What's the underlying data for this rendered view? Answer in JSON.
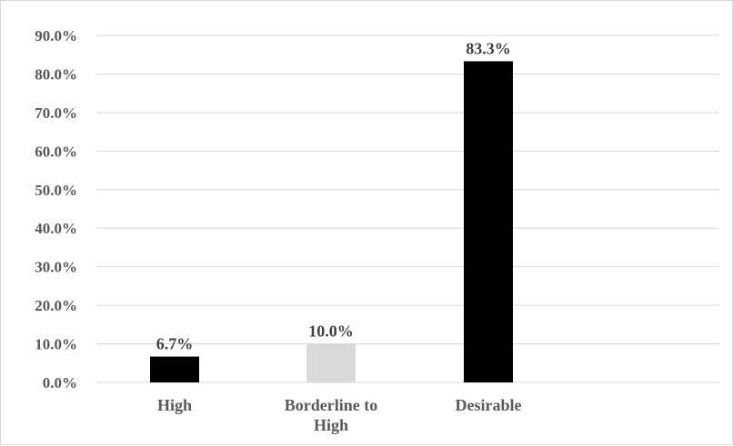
{
  "chart_data": {
    "type": "bar",
    "title": "",
    "xlabel": "",
    "ylabel": "",
    "categories": [
      [
        "High"
      ],
      [
        "Borderline to",
        "High"
      ],
      [
        "Desirable"
      ]
    ],
    "values": [
      6.7,
      10.0,
      83.3
    ],
    "data_labels": [
      "6.7%",
      "10.0%",
      "83.3%"
    ],
    "bar_colors": [
      "#000000",
      "#d9d9d9",
      "#000000"
    ],
    "ylim": [
      0,
      90
    ],
    "y_ticks": [
      {
        "value": 0,
        "label": "0.0%"
      },
      {
        "value": 10,
        "label": "10.0%"
      },
      {
        "value": 20,
        "label": "20.0%"
      },
      {
        "value": 30,
        "label": "30.0%"
      },
      {
        "value": 40,
        "label": "40.0%"
      },
      {
        "value": 50,
        "label": "50.0%"
      },
      {
        "value": 60,
        "label": "60.0%"
      },
      {
        "value": 70,
        "label": "70.0%"
      },
      {
        "value": 80,
        "label": "80.0%"
      },
      {
        "value": 90,
        "label": "90.0%"
      }
    ],
    "grid": true,
    "legend": "none",
    "gridline_color": "#d9d9d9",
    "tick_label_color": "#595959",
    "data_label_color": "#404040"
  }
}
